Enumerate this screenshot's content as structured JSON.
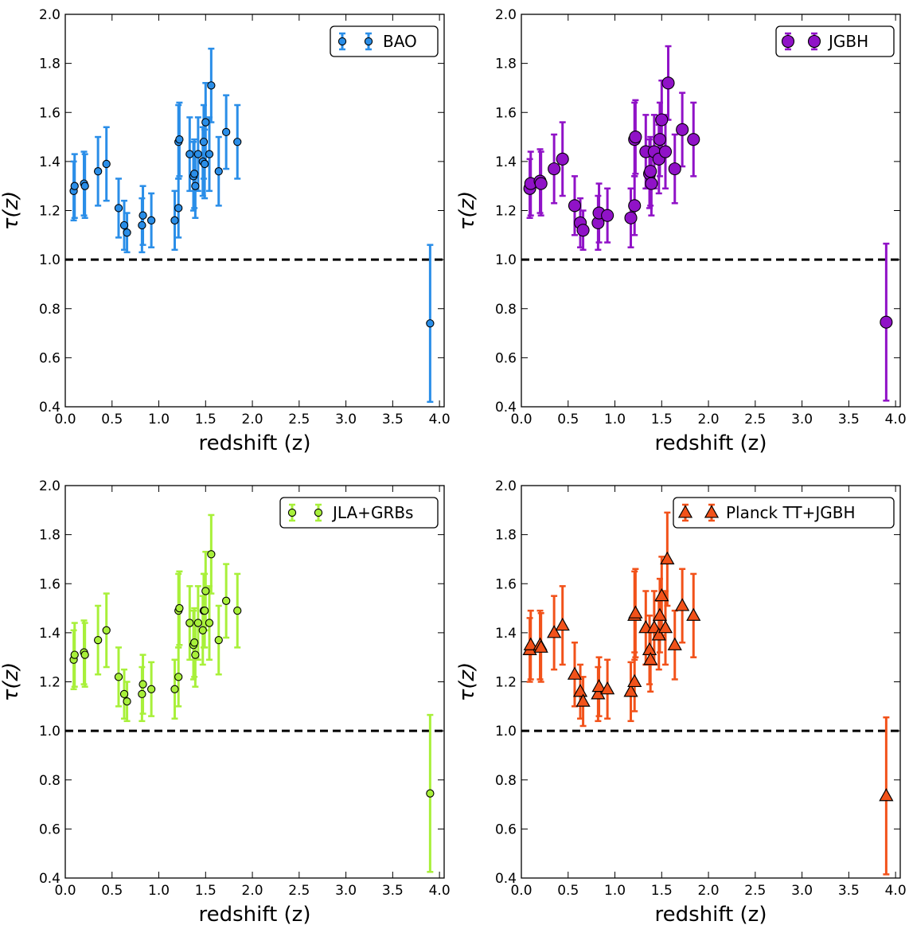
{
  "chart_data": [
    {
      "type": "scatter",
      "xlabel": "redshift (z)",
      "ylabel": "τ(z)",
      "xlim": [
        0.0,
        4.05
      ],
      "ylim": [
        0.4,
        2.0
      ],
      "xticks": [
        "0.0",
        "0.5",
        "1.0",
        "1.5",
        "2.0",
        "2.5",
        "3.0",
        "3.5",
        "4.0"
      ],
      "yticks": [
        "0.4",
        "0.6",
        "0.8",
        "1.0",
        "1.2",
        "1.4",
        "1.6",
        "1.8",
        "2.0"
      ],
      "reference_line": {
        "y": 1.0,
        "style": "dashed",
        "color": "#000000"
      },
      "legend_position": "top-right",
      "grid": false,
      "series": [
        {
          "name": "BAO",
          "color": "#2a8ee8",
          "marker": "circle",
          "points": [
            {
              "x": 0.09,
              "y": 1.28,
              "err": 0.12
            },
            {
              "x": 0.1,
              "y": 1.3,
              "err": 0.13
            },
            {
              "x": 0.2,
              "y": 1.31,
              "err": 0.13
            },
            {
              "x": 0.21,
              "y": 1.3,
              "err": 0.13
            },
            {
              "x": 0.35,
              "y": 1.36,
              "err": 0.14
            },
            {
              "x": 0.44,
              "y": 1.39,
              "err": 0.15
            },
            {
              "x": 0.57,
              "y": 1.21,
              "err": 0.12
            },
            {
              "x": 0.63,
              "y": 1.14,
              "err": 0.1
            },
            {
              "x": 0.66,
              "y": 1.11,
              "err": 0.08
            },
            {
              "x": 0.82,
              "y": 1.14,
              "err": 0.11
            },
            {
              "x": 0.83,
              "y": 1.18,
              "err": 0.12
            },
            {
              "x": 0.92,
              "y": 1.16,
              "err": 0.11
            },
            {
              "x": 1.17,
              "y": 1.16,
              "err": 0.12
            },
            {
              "x": 1.21,
              "y": 1.21,
              "err": 0.12
            },
            {
              "x": 1.21,
              "y": 1.48,
              "err": 0.15
            },
            {
              "x": 1.22,
              "y": 1.49,
              "err": 0.15
            },
            {
              "x": 1.33,
              "y": 1.43,
              "err": 0.15
            },
            {
              "x": 1.37,
              "y": 1.34,
              "err": 0.14
            },
            {
              "x": 1.38,
              "y": 1.35,
              "err": 0.14
            },
            {
              "x": 1.39,
              "y": 1.3,
              "err": 0.13
            },
            {
              "x": 1.42,
              "y": 1.43,
              "err": 0.15
            },
            {
              "x": 1.47,
              "y": 1.4,
              "err": 0.14
            },
            {
              "x": 1.48,
              "y": 1.48,
              "err": 0.15
            },
            {
              "x": 1.49,
              "y": 1.39,
              "err": 0.14
            },
            {
              "x": 1.5,
              "y": 1.56,
              "err": 0.16
            },
            {
              "x": 1.54,
              "y": 1.43,
              "err": 0.15
            },
            {
              "x": 1.56,
              "y": 1.71,
              "err": 0.15
            },
            {
              "x": 1.64,
              "y": 1.36,
              "err": 0.14
            },
            {
              "x": 1.72,
              "y": 1.52,
              "err": 0.15
            },
            {
              "x": 1.84,
              "y": 1.48,
              "err": 0.15
            },
            {
              "x": 3.9,
              "y": 0.74,
              "err": 0.32
            }
          ]
        }
      ]
    },
    {
      "type": "scatter",
      "xlabel": "redshift (z)",
      "ylabel": "τ(z)",
      "xlim": [
        0.0,
        4.05
      ],
      "ylim": [
        0.4,
        2.0
      ],
      "xticks": [
        "0.0",
        "0.5",
        "1.0",
        "1.5",
        "2.0",
        "2.5",
        "3.0",
        "3.5",
        "4.0"
      ],
      "yticks": [
        "0.4",
        "0.6",
        "0.8",
        "1.0",
        "1.2",
        "1.4",
        "1.6",
        "1.8",
        "2.0"
      ],
      "reference_line": {
        "y": 1.0,
        "style": "dashed",
        "color": "#000000"
      },
      "legend_position": "top-right",
      "grid": false,
      "series": [
        {
          "name": "JGBH",
          "color": "#9012c7",
          "marker": "circle-large",
          "points": [
            {
              "x": 0.09,
              "y": 1.29,
              "err": 0.12
            },
            {
              "x": 0.1,
              "y": 1.31,
              "err": 0.13
            },
            {
              "x": 0.2,
              "y": 1.32,
              "err": 0.13
            },
            {
              "x": 0.21,
              "y": 1.31,
              "err": 0.13
            },
            {
              "x": 0.35,
              "y": 1.37,
              "err": 0.14
            },
            {
              "x": 0.44,
              "y": 1.41,
              "err": 0.15
            },
            {
              "x": 0.57,
              "y": 1.22,
              "err": 0.12
            },
            {
              "x": 0.63,
              "y": 1.15,
              "err": 0.1
            },
            {
              "x": 0.66,
              "y": 1.12,
              "err": 0.08
            },
            {
              "x": 0.82,
              "y": 1.15,
              "err": 0.11
            },
            {
              "x": 0.83,
              "y": 1.19,
              "err": 0.12
            },
            {
              "x": 0.92,
              "y": 1.18,
              "err": 0.11
            },
            {
              "x": 1.17,
              "y": 1.17,
              "err": 0.12
            },
            {
              "x": 1.21,
              "y": 1.22,
              "err": 0.12
            },
            {
              "x": 1.21,
              "y": 1.49,
              "err": 0.15
            },
            {
              "x": 1.22,
              "y": 1.5,
              "err": 0.15
            },
            {
              "x": 1.33,
              "y": 1.44,
              "err": 0.15
            },
            {
              "x": 1.37,
              "y": 1.35,
              "err": 0.14
            },
            {
              "x": 1.38,
              "y": 1.36,
              "err": 0.14
            },
            {
              "x": 1.39,
              "y": 1.31,
              "err": 0.13
            },
            {
              "x": 1.42,
              "y": 1.44,
              "err": 0.15
            },
            {
              "x": 1.47,
              "y": 1.41,
              "err": 0.14
            },
            {
              "x": 1.48,
              "y": 1.49,
              "err": 0.15
            },
            {
              "x": 1.5,
              "y": 1.57,
              "err": 0.16
            },
            {
              "x": 1.54,
              "y": 1.44,
              "err": 0.15
            },
            {
              "x": 1.57,
              "y": 1.72,
              "err": 0.15
            },
            {
              "x": 1.64,
              "y": 1.37,
              "err": 0.14
            },
            {
              "x": 1.72,
              "y": 1.53,
              "err": 0.15
            },
            {
              "x": 1.84,
              "y": 1.49,
              "err": 0.15
            },
            {
              "x": 3.9,
              "y": 0.745,
              "err": 0.32
            }
          ]
        }
      ]
    },
    {
      "type": "scatter",
      "xlabel": "redshift (z)",
      "ylabel": "τ(z)",
      "xlim": [
        0.0,
        4.05
      ],
      "ylim": [
        0.4,
        2.0
      ],
      "xticks": [
        "0.0",
        "0.5",
        "1.0",
        "1.5",
        "2.0",
        "2.5",
        "3.0",
        "3.5",
        "4.0"
      ],
      "yticks": [
        "0.4",
        "0.6",
        "0.8",
        "1.0",
        "1.2",
        "1.4",
        "1.6",
        "1.8",
        "2.0"
      ],
      "reference_line": {
        "y": 1.0,
        "style": "dashed",
        "color": "#000000"
      },
      "legend_position": "top-right",
      "grid": false,
      "series": [
        {
          "name": "JLA+GRBs",
          "color": "#a8f03a",
          "marker": "circle",
          "points": [
            {
              "x": 0.09,
              "y": 1.29,
              "err": 0.12
            },
            {
              "x": 0.1,
              "y": 1.31,
              "err": 0.13
            },
            {
              "x": 0.2,
              "y": 1.32,
              "err": 0.13
            },
            {
              "x": 0.21,
              "y": 1.31,
              "err": 0.13
            },
            {
              "x": 0.35,
              "y": 1.37,
              "err": 0.14
            },
            {
              "x": 0.44,
              "y": 1.41,
              "err": 0.15
            },
            {
              "x": 0.57,
              "y": 1.22,
              "err": 0.12
            },
            {
              "x": 0.63,
              "y": 1.15,
              "err": 0.1
            },
            {
              "x": 0.66,
              "y": 1.12,
              "err": 0.08
            },
            {
              "x": 0.82,
              "y": 1.15,
              "err": 0.11
            },
            {
              "x": 0.83,
              "y": 1.19,
              "err": 0.12
            },
            {
              "x": 0.92,
              "y": 1.17,
              "err": 0.11
            },
            {
              "x": 1.17,
              "y": 1.17,
              "err": 0.12
            },
            {
              "x": 1.21,
              "y": 1.22,
              "err": 0.12
            },
            {
              "x": 1.21,
              "y": 1.49,
              "err": 0.15
            },
            {
              "x": 1.22,
              "y": 1.5,
              "err": 0.15
            },
            {
              "x": 1.33,
              "y": 1.44,
              "err": 0.15
            },
            {
              "x": 1.37,
              "y": 1.35,
              "err": 0.14
            },
            {
              "x": 1.38,
              "y": 1.36,
              "err": 0.14
            },
            {
              "x": 1.39,
              "y": 1.31,
              "err": 0.13
            },
            {
              "x": 1.42,
              "y": 1.44,
              "err": 0.15
            },
            {
              "x": 1.47,
              "y": 1.41,
              "err": 0.14
            },
            {
              "x": 1.48,
              "y": 1.49,
              "err": 0.15
            },
            {
              "x": 1.49,
              "y": 1.49,
              "err": 0.15
            },
            {
              "x": 1.5,
              "y": 1.57,
              "err": 0.16
            },
            {
              "x": 1.54,
              "y": 1.44,
              "err": 0.15
            },
            {
              "x": 1.56,
              "y": 1.72,
              "err": 0.16
            },
            {
              "x": 1.64,
              "y": 1.37,
              "err": 0.14
            },
            {
              "x": 1.72,
              "y": 1.53,
              "err": 0.15
            },
            {
              "x": 1.84,
              "y": 1.49,
              "err": 0.15
            },
            {
              "x": 3.9,
              "y": 0.745,
              "err": 0.32
            }
          ]
        }
      ]
    },
    {
      "type": "scatter",
      "xlabel": "redshift (z)",
      "ylabel": "τ(z)",
      "xlim": [
        0.0,
        4.05
      ],
      "ylim": [
        0.4,
        2.0
      ],
      "xticks": [
        "0.0",
        "0.5",
        "1.0",
        "1.5",
        "2.0",
        "2.5",
        "3.0",
        "3.5",
        "4.0"
      ],
      "yticks": [
        "0.4",
        "0.6",
        "0.8",
        "1.0",
        "1.2",
        "1.4",
        "1.6",
        "1.8",
        "2.0"
      ],
      "reference_line": {
        "y": 1.0,
        "style": "dashed",
        "color": "#000000"
      },
      "legend_position": "top-right",
      "grid": false,
      "series": [
        {
          "name": "Planck TT+JGBH",
          "color": "#f2521a",
          "marker": "triangle",
          "points": [
            {
              "x": 0.09,
              "y": 1.33,
              "err": 0.13
            },
            {
              "x": 0.1,
              "y": 1.35,
              "err": 0.14
            },
            {
              "x": 0.2,
              "y": 1.35,
              "err": 0.14
            },
            {
              "x": 0.21,
              "y": 1.34,
              "err": 0.14
            },
            {
              "x": 0.35,
              "y": 1.4,
              "err": 0.15
            },
            {
              "x": 0.44,
              "y": 1.43,
              "err": 0.16
            },
            {
              "x": 0.57,
              "y": 1.23,
              "err": 0.13
            },
            {
              "x": 0.63,
              "y": 1.16,
              "err": 0.11
            },
            {
              "x": 0.66,
              "y": 1.12,
              "err": 0.1
            },
            {
              "x": 0.82,
              "y": 1.15,
              "err": 0.11
            },
            {
              "x": 0.83,
              "y": 1.18,
              "err": 0.12
            },
            {
              "x": 0.92,
              "y": 1.17,
              "err": 0.12
            },
            {
              "x": 1.17,
              "y": 1.16,
              "err": 0.12
            },
            {
              "x": 1.21,
              "y": 1.2,
              "err": 0.12
            },
            {
              "x": 1.21,
              "y": 1.47,
              "err": 0.18
            },
            {
              "x": 1.22,
              "y": 1.48,
              "err": 0.18
            },
            {
              "x": 1.33,
              "y": 1.42,
              "err": 0.15
            },
            {
              "x": 1.37,
              "y": 1.33,
              "err": 0.14
            },
            {
              "x": 1.38,
              "y": 1.29,
              "err": 0.13
            },
            {
              "x": 1.42,
              "y": 1.42,
              "err": 0.15
            },
            {
              "x": 1.47,
              "y": 1.39,
              "err": 0.14
            },
            {
              "x": 1.48,
              "y": 1.47,
              "err": 0.15
            },
            {
              "x": 1.5,
              "y": 1.55,
              "err": 0.16
            },
            {
              "x": 1.54,
              "y": 1.42,
              "err": 0.15
            },
            {
              "x": 1.56,
              "y": 1.7,
              "err": 0.19
            },
            {
              "x": 1.64,
              "y": 1.35,
              "err": 0.14
            },
            {
              "x": 1.72,
              "y": 1.51,
              "err": 0.15
            },
            {
              "x": 1.84,
              "y": 1.47,
              "err": 0.17
            },
            {
              "x": 3.9,
              "y": 0.735,
              "err": 0.32
            }
          ]
        }
      ]
    }
  ]
}
